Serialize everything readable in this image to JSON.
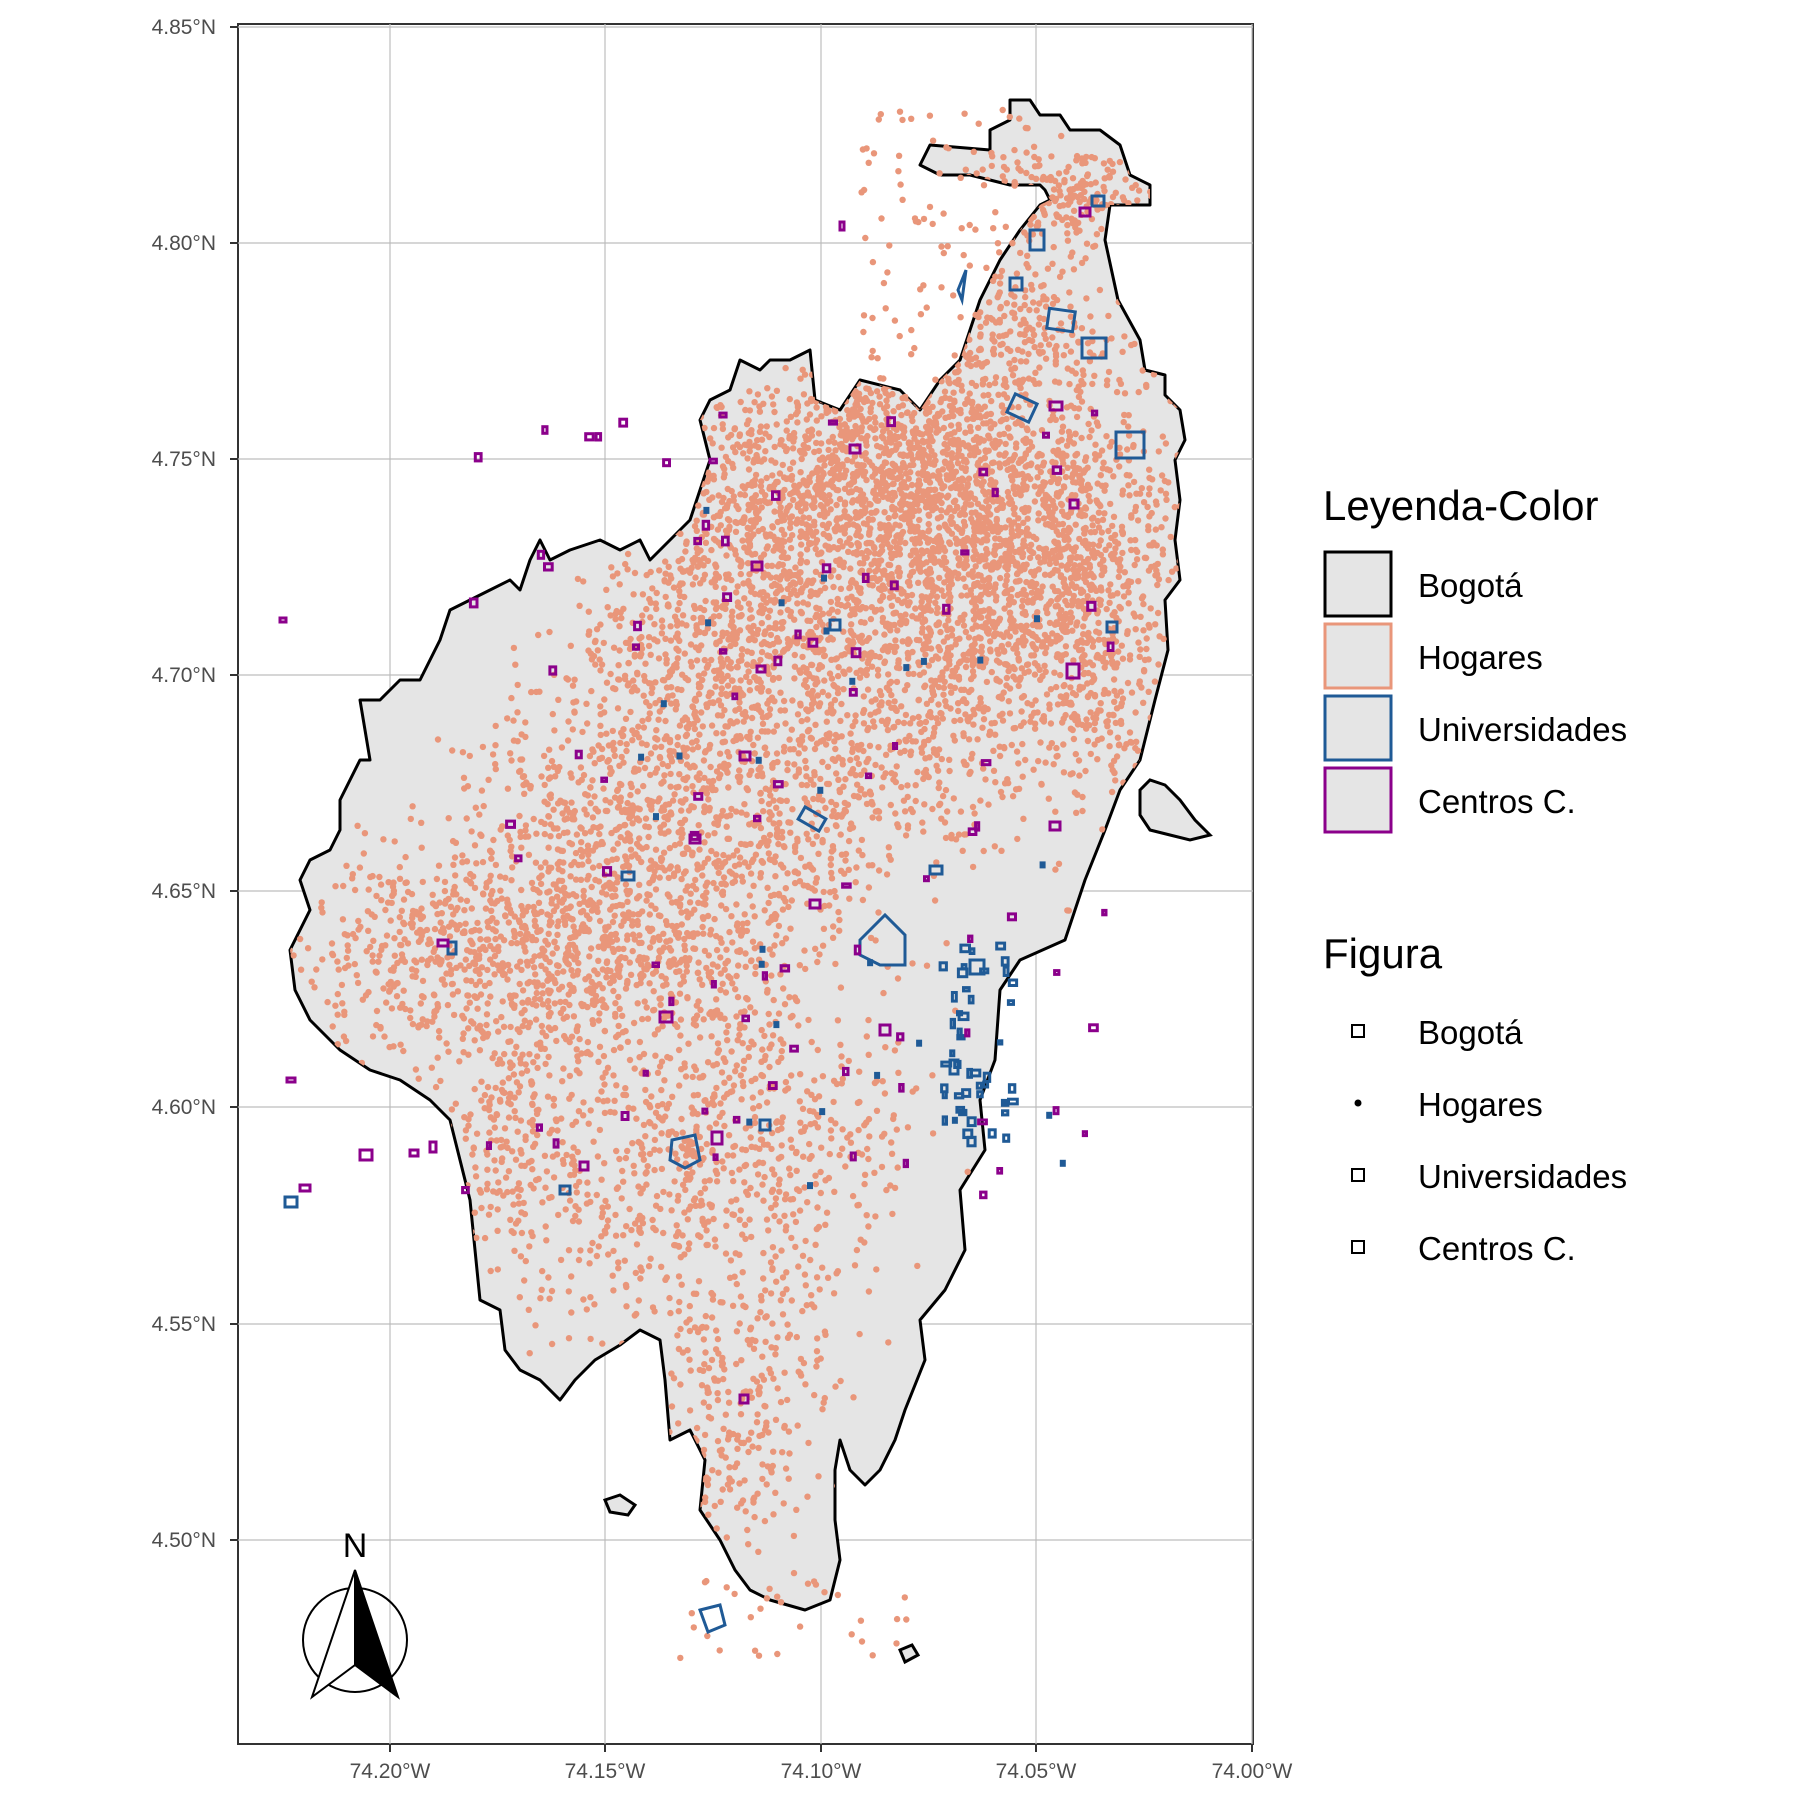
{
  "map": {
    "x_ticks": [
      "74.20°W",
      "74.15°W",
      "74.10°W",
      "74.05°W",
      "74.00°W"
    ],
    "y_ticks": [
      "4.50°N",
      "4.55°N",
      "4.60°N",
      "4.65°N",
      "4.70°N",
      "4.75°N",
      "4.80°N",
      "4.85°N"
    ],
    "xlim": [
      -74.236,
      -73.998
    ],
    "ylim": [
      4.456,
      4.852
    ],
    "north_arrow_label": "N"
  },
  "legend_color": {
    "title": "Leyenda-Color",
    "items": [
      {
        "label": "Bogotá",
        "border": "#000000",
        "fill": "#e5e5e5"
      },
      {
        "label": "Hogares",
        "border": "#e9967a",
        "fill": "#e5e5e5"
      },
      {
        "label": "Universidades",
        "border": "#1f5a96",
        "fill": "#e5e5e5"
      },
      {
        "label": "Centros C.",
        "border": "#8b008b",
        "fill": "#e5e5e5"
      }
    ]
  },
  "legend_shape": {
    "title": "Figura",
    "items": [
      {
        "label": "Bogotá",
        "symbol": "square"
      },
      {
        "label": "Hogares",
        "symbol": "dot"
      },
      {
        "label": "Universidades",
        "symbol": "square"
      },
      {
        "label": "Centros C.",
        "symbol": "square"
      }
    ]
  },
  "colors": {
    "panel_bg": "#ffffff",
    "grid": "#bdbdbd",
    "city_fill": "#e5e5e5",
    "city_border": "#000000",
    "hogares": "#e9967a",
    "universidades": "#1f5a96",
    "centros": "#8b008b"
  }
}
